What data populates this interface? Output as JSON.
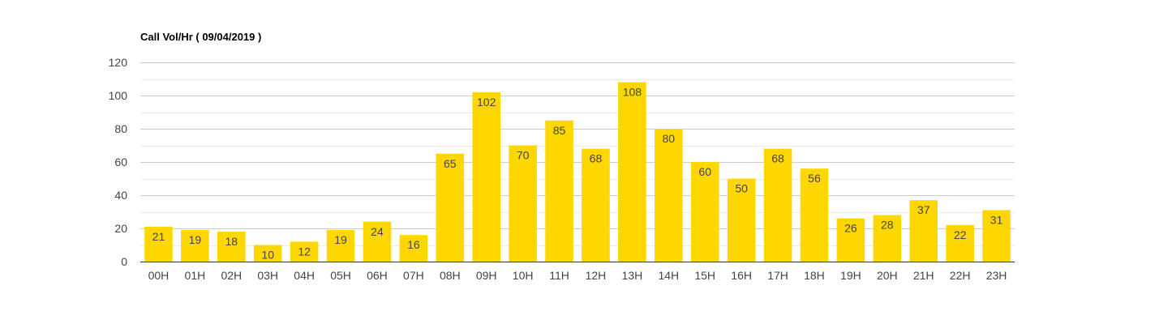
{
  "chart_data": {
    "type": "bar",
    "title": "Call Vol/Hr ( 09/04/2019 )",
    "xlabel": "",
    "ylabel": "",
    "categories": [
      "00H",
      "01H",
      "02H",
      "03H",
      "04H",
      "05H",
      "06H",
      "07H",
      "08H",
      "09H",
      "10H",
      "11H",
      "12H",
      "13H",
      "14H",
      "15H",
      "16H",
      "17H",
      "18H",
      "19H",
      "20H",
      "21H",
      "22H",
      "23H"
    ],
    "values": [
      21,
      19,
      18,
      10,
      12,
      19,
      24,
      16,
      65,
      102,
      70,
      85,
      68,
      108,
      80,
      60,
      50,
      68,
      56,
      26,
      28,
      37,
      22,
      31
    ],
    "ylim": [
      0,
      120
    ],
    "yticks": [
      0,
      20,
      40,
      60,
      80,
      100,
      120
    ],
    "grid": true,
    "bar_color": "#FFD700",
    "gridline_color": "#cccccc",
    "minor_gridline_color": "#ebebeb"
  }
}
